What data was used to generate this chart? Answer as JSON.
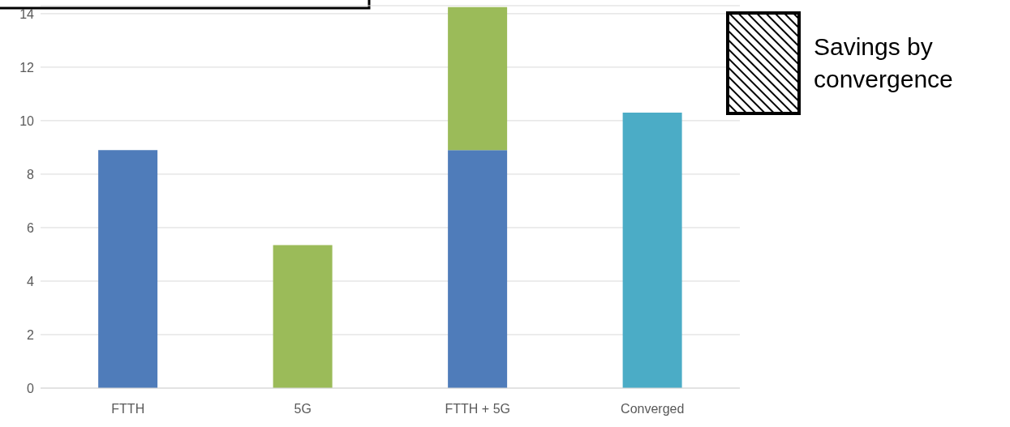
{
  "chart_data": {
    "type": "bar",
    "stacked": true,
    "categories": [
      "FTTH",
      "5G",
      "FTTH + 5G",
      "Converged"
    ],
    "series": [
      {
        "color": "#4f7cba",
        "values": [
          8.9,
          null,
          8.9,
          null
        ]
      },
      {
        "color": "#9bbb59",
        "values": [
          null,
          5.35,
          5.35,
          null
        ]
      },
      {
        "color": "#4bacc6",
        "values": [
          null,
          null,
          null,
          10.3
        ]
      }
    ],
    "annotations": [
      "Savings by convergence"
    ],
    "ylim": [
      0,
      14.3
    ],
    "yticks": [
      0,
      2,
      4,
      6,
      8,
      10,
      12,
      14
    ],
    "grid": "y"
  }
}
